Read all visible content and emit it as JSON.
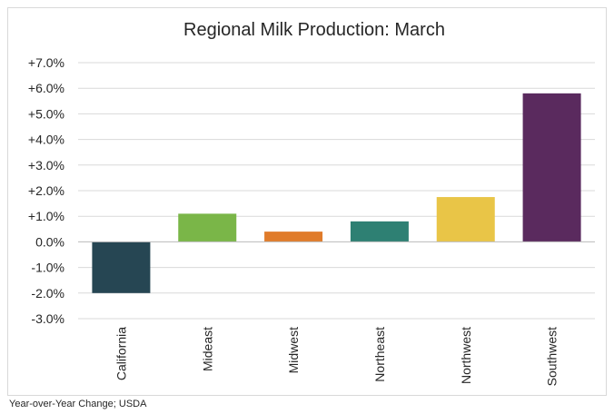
{
  "chart_data": {
    "type": "bar",
    "title": "Regional Milk Production: March",
    "xlabel": "",
    "ylabel": "",
    "categories": [
      "California",
      "Mideast",
      "Midwest",
      "Northeast",
      "Northwest",
      "Southwest"
    ],
    "values": [
      -2.0,
      1.1,
      0.4,
      0.8,
      1.75,
      5.8
    ],
    "value_unit": "percent",
    "colors": [
      "#264653",
      "#7ab648",
      "#e07b2a",
      "#2e8073",
      "#e9c547",
      "#5a2a5e"
    ],
    "ylim": [
      -3.0,
      7.0
    ],
    "yticks": [
      7.0,
      6.0,
      5.0,
      4.0,
      3.0,
      2.0,
      1.0,
      0.0,
      -1.0,
      -2.0,
      -3.0
    ],
    "ytick_labels": [
      "+7.0%",
      "+6.0%",
      "+5.0%",
      "+4.0%",
      "+3.0%",
      "+2.0%",
      "+1.0%",
      "0.0%",
      "-1.0%",
      "-2.0%",
      "-3.0%"
    ],
    "grid": true,
    "legend": "none"
  },
  "note": "Year-over-Year Change; USDA"
}
